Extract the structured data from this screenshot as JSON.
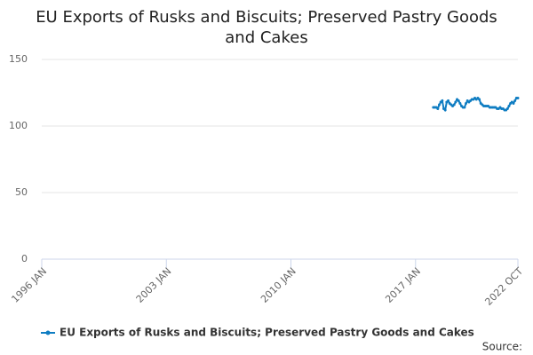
{
  "chart_data": {
    "type": "line",
    "title": "EU Exports of Rusks and Biscuits; Preserved Pastry Goods and Cakes",
    "x": [
      "2018 JAN",
      "2018 FEB",
      "2018 MAR",
      "2018 APR",
      "2018 MAY",
      "2018 JUN",
      "2018 JUL",
      "2018 AUG",
      "2018 SEP",
      "2018 OCT",
      "2018 NOV",
      "2018 DEC",
      "2019 JAN",
      "2019 FEB",
      "2019 MAR",
      "2019 APR",
      "2019 MAY",
      "2019 JUN",
      "2019 JUL",
      "2019 AUG",
      "2019 SEP",
      "2019 OCT",
      "2019 NOV",
      "2019 DEC",
      "2020 JAN",
      "2020 FEB",
      "2020 MAR",
      "2020 APR",
      "2020 MAY",
      "2020 JUN",
      "2020 JUL",
      "2020 AUG",
      "2020 SEP",
      "2020 OCT",
      "2020 NOV",
      "2020 DEC",
      "2021 JAN",
      "2021 FEB",
      "2021 MAR",
      "2021 APR",
      "2021 MAY",
      "2021 JUN",
      "2021 JUL",
      "2021 AUG",
      "2021 SEP",
      "2021 OCT",
      "2021 NOV",
      "2021 DEC",
      "2022 JAN",
      "2022 FEB",
      "2022 MAR",
      "2022 APR",
      "2022 MAY",
      "2022 JUN",
      "2022 JUL",
      "2022 AUG",
      "2022 SEP",
      "2022 OCT"
    ],
    "series": [
      {
        "name": "EU Exports of Rusks and Biscuits; Preserved Pastry Goods and Cakes",
        "color": "#0f7dc2",
        "values": [
          114,
          114,
          114,
          113,
          116,
          118,
          119,
          113,
          112,
          118,
          119,
          117,
          116,
          115,
          116,
          118,
          120,
          119,
          117,
          115,
          114,
          114,
          117,
          119,
          118,
          119,
          120,
          120,
          121,
          120,
          121,
          120,
          117,
          116,
          115,
          115,
          115,
          115,
          114,
          114,
          114,
          114,
          114,
          113,
          113,
          114,
          113,
          113,
          112,
          112,
          113,
          115,
          117,
          118,
          117,
          119,
          121,
          121
        ]
      }
    ],
    "xlim": [
      "1996 JAN",
      "2022 OCT"
    ],
    "xticks": [
      "1996 JAN",
      "2003 JAN",
      "2010 JAN",
      "2017 JAN",
      "2022 OCT"
    ],
    "ylim": [
      0,
      150
    ],
    "yticks": [
      0,
      50,
      100,
      150
    ],
    "grid": true,
    "legend": "bottom",
    "source_label": "Source:"
  }
}
